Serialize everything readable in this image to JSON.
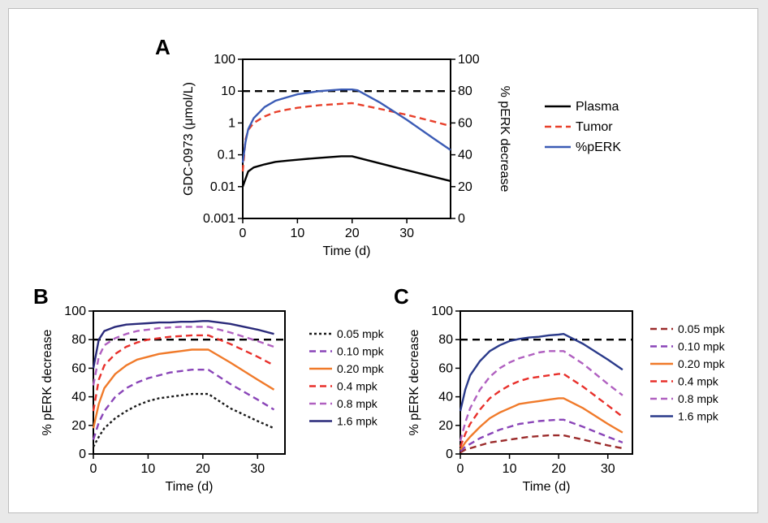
{
  "chart_data": [
    {
      "panel": "A",
      "type": "line",
      "xlabel": "Time (d)",
      "ylabel": "GDC-0973 (μmol/L)",
      "y2label": "% pERK decrease",
      "xlim": [
        0,
        38
      ],
      "ylim": [
        0.001,
        100
      ],
      "yscale": "log",
      "y2lim": [
        0,
        100
      ],
      "xticks": [
        "0",
        "10",
        "20",
        "30"
      ],
      "yticks": [
        "0.001",
        "0.01",
        "0.1",
        "1",
        "10",
        "100"
      ],
      "y2ticks": [
        "0",
        "20",
        "40",
        "60",
        "80",
        "100"
      ],
      "threshold": {
        "axis": "y2",
        "value": 80
      },
      "legend_position": "right",
      "series": [
        {
          "name": "Plasma",
          "axis": "y",
          "style": "solid",
          "color": "#000000",
          "x": [
            0,
            1,
            2,
            4,
            6,
            8,
            10,
            12,
            14,
            16,
            18,
            20,
            28,
            38
          ],
          "y": [
            0.01,
            0.03,
            0.04,
            0.05,
            0.06,
            0.065,
            0.07,
            0.075,
            0.08,
            0.085,
            0.09,
            0.09,
            0.04,
            0.015
          ]
        },
        {
          "name": "Tumor",
          "axis": "y",
          "style": "dashed",
          "color": "#e8402b",
          "x": [
            0,
            0.5,
            1,
            2,
            4,
            6,
            8,
            10,
            12,
            14,
            16,
            18,
            20,
            25,
            30,
            35,
            38
          ],
          "y": [
            0.03,
            0.3,
            0.6,
            1.0,
            1.6,
            2.2,
            2.6,
            3.0,
            3.3,
            3.6,
            3.8,
            4.0,
            4.2,
            2.8,
            1.8,
            1.1,
            0.8
          ]
        },
        {
          "name": "%pERK",
          "axis": "y2",
          "style": "solid",
          "color": "#3b5bb5",
          "x": [
            0,
            0.5,
            1,
            2,
            4,
            6,
            8,
            10,
            12,
            14,
            16,
            18,
            20,
            21,
            25,
            30,
            35,
            38
          ],
          "y": [
            35,
            48,
            56,
            63,
            70,
            74,
            76,
            78,
            79,
            80,
            80.5,
            81,
            81,
            80.5,
            73,
            62,
            50,
            43
          ]
        }
      ]
    },
    {
      "panel": "B",
      "type": "line",
      "xlabel": "Time (d)",
      "ylabel": "% pERK decrease",
      "xlim": [
        0,
        35
      ],
      "ylim": [
        0,
        100
      ],
      "xticks": [
        "0",
        "10",
        "20",
        "30"
      ],
      "yticks": [
        "0",
        "20",
        "40",
        "60",
        "80",
        "100"
      ],
      "threshold": {
        "axis": "y",
        "value": 80
      },
      "legend_position": "right",
      "series": [
        {
          "name": "0.05 mpk",
          "style": "dotted",
          "color": "#1a1a1a",
          "x": [
            0,
            1,
            2,
            4,
            6,
            8,
            10,
            12,
            14,
            16,
            18,
            20,
            21,
            25,
            30,
            33
          ],
          "y": [
            5,
            12,
            18,
            25,
            30,
            34,
            37,
            39,
            40,
            41,
            42,
            42,
            42,
            32,
            23,
            18
          ]
        },
        {
          "name": "0.10 mpk",
          "style": "dashed",
          "color": "#8a45b8",
          "x": [
            0,
            1,
            2,
            4,
            6,
            8,
            10,
            12,
            14,
            16,
            18,
            20,
            21,
            25,
            30,
            33
          ],
          "y": [
            10,
            22,
            30,
            40,
            46,
            50,
            53,
            55,
            57,
            58,
            59,
            59,
            59,
            49,
            38,
            31
          ]
        },
        {
          "name": "0.20 mpk",
          "style": "solid",
          "color": "#f07a2a",
          "x": [
            0,
            1,
            2,
            4,
            6,
            8,
            10,
            12,
            14,
            16,
            18,
            20,
            21,
            25,
            30,
            33
          ],
          "y": [
            18,
            35,
            46,
            56,
            62,
            66,
            68,
            70,
            71,
            72,
            73,
            73,
            73,
            64,
            52,
            45
          ]
        },
        {
          "name": "0.4 mpk",
          "style": "dashed",
          "color": "#e8302b",
          "x": [
            0,
            1,
            2,
            4,
            6,
            8,
            10,
            12,
            14,
            16,
            18,
            20,
            21,
            25,
            30,
            33
          ],
          "y": [
            30,
            52,
            62,
            70,
            75,
            78,
            80,
            81,
            82,
            82.5,
            83,
            83,
            83,
            77,
            68,
            62
          ]
        },
        {
          "name": "0.8 mpk",
          "style": "dashed",
          "color": "#b060c0",
          "x": [
            0,
            1,
            2,
            4,
            6,
            8,
            10,
            12,
            14,
            16,
            18,
            20,
            21,
            25,
            30,
            33
          ],
          "y": [
            48,
            68,
            76,
            81,
            84,
            86,
            87,
            88,
            88.5,
            89,
            89,
            89,
            89,
            85,
            79,
            75
          ]
        },
        {
          "name": "1.6 mpk",
          "style": "solid",
          "color": "#2a2a7a",
          "x": [
            0,
            1,
            2,
            4,
            6,
            8,
            10,
            12,
            14,
            16,
            18,
            20,
            21,
            25,
            30,
            33
          ],
          "y": [
            60,
            80,
            86,
            89,
            90.5,
            91,
            91.5,
            92,
            92,
            92.5,
            92.5,
            93,
            93,
            91,
            87,
            84
          ]
        }
      ]
    },
    {
      "panel": "C",
      "type": "line",
      "xlabel": "Time (d)",
      "ylabel": "% pERK decrease",
      "xlim": [
        0,
        35
      ],
      "ylim": [
        0,
        100
      ],
      "xticks": [
        "0",
        "10",
        "20",
        "30"
      ],
      "yticks": [
        "0",
        "20",
        "40",
        "60",
        "80",
        "100"
      ],
      "threshold": {
        "axis": "y",
        "value": 80
      },
      "legend_position": "right",
      "series": [
        {
          "name": "0.05 mpk",
          "style": "dashed",
          "color": "#9b2b2b",
          "x": [
            0,
            1,
            2,
            4,
            6,
            8,
            10,
            12,
            14,
            16,
            18,
            20,
            21,
            25,
            30,
            33
          ],
          "y": [
            1,
            3,
            4,
            6,
            8,
            9,
            10,
            11,
            12,
            12.5,
            13,
            13,
            13,
            10,
            6,
            4
          ]
        },
        {
          "name": "0.10 mpk",
          "style": "dashed",
          "color": "#8a45b8",
          "x": [
            0,
            1,
            2,
            4,
            6,
            8,
            10,
            12,
            14,
            16,
            18,
            20,
            21,
            25,
            30,
            33
          ],
          "y": [
            2,
            5,
            7,
            11,
            14,
            17,
            19,
            21,
            22,
            23,
            23.5,
            24,
            24,
            19,
            12,
            8
          ]
        },
        {
          "name": "0.20 mpk",
          "style": "solid",
          "color": "#f07a2a",
          "x": [
            0,
            1,
            2,
            4,
            6,
            8,
            10,
            12,
            14,
            16,
            18,
            20,
            21,
            25,
            30,
            33
          ],
          "y": [
            3,
            8,
            12,
            19,
            25,
            29,
            32,
            35,
            36,
            37,
            38,
            39,
            39,
            32,
            21,
            15
          ]
        },
        {
          "name": "0.4 mpk",
          "style": "dashed",
          "color": "#e8302b",
          "x": [
            0,
            1,
            2,
            4,
            6,
            8,
            10,
            12,
            14,
            16,
            18,
            20,
            21,
            25,
            30,
            33
          ],
          "y": [
            5,
            14,
            21,
            31,
            39,
            44,
            48,
            51,
            53,
            54,
            55,
            56,
            56,
            47,
            34,
            26
          ]
        },
        {
          "name": "0.8 mpk",
          "style": "dashed",
          "color": "#b060c0",
          "x": [
            0,
            1,
            2,
            4,
            6,
            8,
            10,
            12,
            14,
            16,
            18,
            20,
            21,
            25,
            30,
            33
          ],
          "y": [
            9,
            22,
            32,
            45,
            54,
            60,
            64,
            67,
            69,
            71,
            72,
            72,
            72,
            63,
            49,
            41
          ]
        },
        {
          "name": "1.6 mpk",
          "style": "solid",
          "color": "#2a3a8a",
          "x": [
            0,
            1,
            2,
            4,
            6,
            8,
            10,
            12,
            14,
            16,
            18,
            20,
            21,
            25,
            30,
            33
          ],
          "y": [
            30,
            45,
            55,
            65,
            72,
            76,
            79,
            80.5,
            81.5,
            82,
            83,
            83.5,
            84,
            77,
            66,
            59
          ]
        }
      ]
    }
  ]
}
